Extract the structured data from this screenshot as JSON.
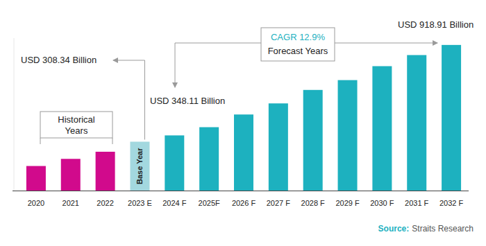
{
  "chart_data": {
    "type": "bar",
    "categories": [
      "2020",
      "2021",
      "2022",
      "2023 E",
      "2024 F",
      "2025F",
      "2026 F",
      "2027 F",
      "2028 F",
      "2029 F",
      "2030 F",
      "2031 F",
      "2032 F"
    ],
    "values": [
      155,
      200,
      245,
      308.34,
      348.11,
      400,
      480,
      550,
      635,
      697,
      785,
      855,
      918.91
    ],
    "value_labels": [
      null,
      null,
      null,
      "USD 308.34 Billion",
      "USD 348.11 Billion",
      null,
      null,
      null,
      null,
      null,
      null,
      null,
      "USD 918.91 Billion"
    ],
    "colors": [
      "#d10a8c",
      "#d10a8c",
      "#d10a8c",
      "#a3d8df",
      "#1db1bf",
      "#1db1bf",
      "#1db1bf",
      "#1db1bf",
      "#1db1bf",
      "#1db1bf",
      "#1db1bf",
      "#1db1bf",
      "#1db1bf"
    ],
    "ylim": [
      0,
      962
    ],
    "tick_labels": "x",
    "annotations": {
      "cagr": "CAGR 12.9%",
      "forecast": "Forecast Years",
      "historical": "Historical Years",
      "base_year": "Base Year",
      "source_label": "Source:",
      "source": "Straits Research"
    }
  }
}
